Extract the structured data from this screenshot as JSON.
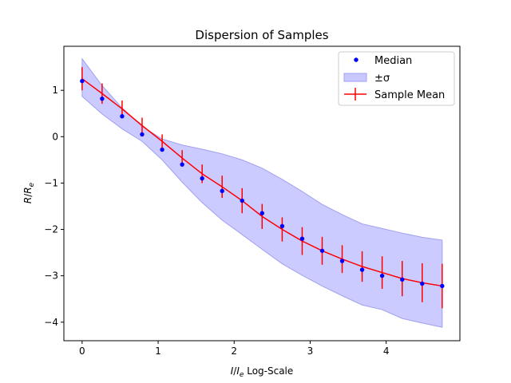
{
  "chart_data": {
    "type": "line",
    "title": "Dispersion of Samples",
    "xlabel": "I/I_e Log-Scale",
    "ylabel": "R/R_e",
    "xlim": [
      -0.24,
      4.97
    ],
    "ylim": [
      -4.4,
      1.95
    ],
    "xticks": [
      0,
      1,
      2,
      3,
      4
    ],
    "xtick_labels": [
      "0",
      "1",
      "2",
      "3",
      "4"
    ],
    "yticks": [
      1,
      0,
      -1,
      -2,
      -3,
      -4
    ],
    "ytick_labels": [
      "1",
      "0",
      "−1",
      "−2",
      "−3",
      "−4"
    ],
    "grid": false,
    "legend_location": "top-right",
    "colors": {
      "median": "#0000ff",
      "mean": "#ff0000",
      "band_fill": "#c8c8ff",
      "band_edge": "#a0a0f0"
    },
    "series": [
      {
        "name": "Median",
        "kind": "markers",
        "x": [
          0.0,
          0.263,
          0.526,
          0.789,
          1.053,
          1.316,
          1.579,
          1.842,
          2.105,
          2.368,
          2.632,
          2.895,
          3.158,
          3.421,
          3.684,
          3.947,
          4.211,
          4.474,
          4.737
        ],
        "y": [
          1.2,
          0.82,
          0.44,
          0.05,
          -0.28,
          -0.6,
          -0.9,
          -1.17,
          -1.38,
          -1.65,
          -1.93,
          -2.2,
          -2.46,
          -2.68,
          -2.87,
          -3.0,
          -3.08,
          -3.17,
          -3.22
        ]
      },
      {
        "name": "±σ",
        "kind": "band",
        "x": [
          0.0,
          0.263,
          0.526,
          0.789,
          1.053,
          1.316,
          1.579,
          1.842,
          2.105,
          2.368,
          2.632,
          2.895,
          3.158,
          3.421,
          3.684,
          3.947,
          4.211,
          4.474,
          4.737
        ],
        "upper": [
          1.68,
          1.1,
          0.62,
          0.22,
          -0.05,
          -0.18,
          -0.27,
          -0.37,
          -0.5,
          -0.68,
          -0.92,
          -1.18,
          -1.46,
          -1.68,
          -1.88,
          -1.98,
          -2.08,
          -2.17,
          -2.23
        ],
        "lower": [
          0.87,
          0.49,
          0.17,
          -0.1,
          -0.5,
          -0.98,
          -1.42,
          -1.8,
          -2.11,
          -2.43,
          -2.74,
          -2.99,
          -3.22,
          -3.43,
          -3.63,
          -3.73,
          -3.92,
          -4.02,
          -4.11
        ]
      },
      {
        "name": "Sample Mean",
        "kind": "line-errorbar",
        "x": [
          0.0,
          0.263,
          0.526,
          0.789,
          1.053,
          1.316,
          1.579,
          1.842,
          2.105,
          2.368,
          2.632,
          2.895,
          3.158,
          3.421,
          3.684,
          3.947,
          4.211,
          4.474,
          4.737
        ],
        "y": [
          1.25,
          0.93,
          0.6,
          0.24,
          -0.1,
          -0.46,
          -0.8,
          -1.08,
          -1.38,
          -1.72,
          -2.0,
          -2.25,
          -2.46,
          -2.64,
          -2.8,
          -2.93,
          -3.06,
          -3.15,
          -3.22
        ],
        "err": [
          0.25,
          0.22,
          0.18,
          0.17,
          0.15,
          0.17,
          0.2,
          0.24,
          0.27,
          0.27,
          0.26,
          0.3,
          0.3,
          0.3,
          0.33,
          0.35,
          0.38,
          0.42,
          0.48
        ]
      }
    ]
  }
}
